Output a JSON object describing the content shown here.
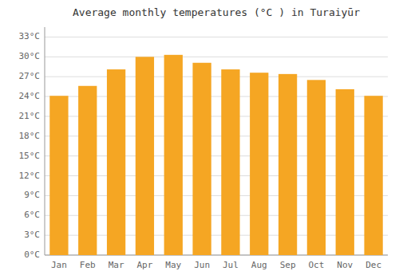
{
  "chart_data": {
    "type": "bar",
    "title": "Average monthly temperatures (°C ) in Turaiyūr",
    "categories": [
      "Jan",
      "Feb",
      "Mar",
      "Apr",
      "May",
      "Jun",
      "Jul",
      "Aug",
      "Sep",
      "Oct",
      "Nov",
      "Dec"
    ],
    "values": [
      24.1,
      25.6,
      28.1,
      30.0,
      30.3,
      29.1,
      28.1,
      27.6,
      27.4,
      26.5,
      25.1,
      24.1
    ],
    "color": "#F5A623",
    "ylim": [
      0,
      34.5
    ],
    "yticks": [
      {
        "value": 0,
        "label": "0°C"
      },
      {
        "value": 3,
        "label": "3°C"
      },
      {
        "value": 6,
        "label": "6°C"
      },
      {
        "value": 9,
        "label": "9°C"
      },
      {
        "value": 12,
        "label": "12°C"
      },
      {
        "value": 15,
        "label": "15°C"
      },
      {
        "value": 18,
        "label": "18°C"
      },
      {
        "value": 21,
        "label": "21°C"
      },
      {
        "value": 24,
        "label": "24°C"
      },
      {
        "value": 27,
        "label": "27°C"
      },
      {
        "value": 30,
        "label": "30°C"
      },
      {
        "value": 33,
        "label": "33°C"
      }
    ],
    "grid": true
  }
}
